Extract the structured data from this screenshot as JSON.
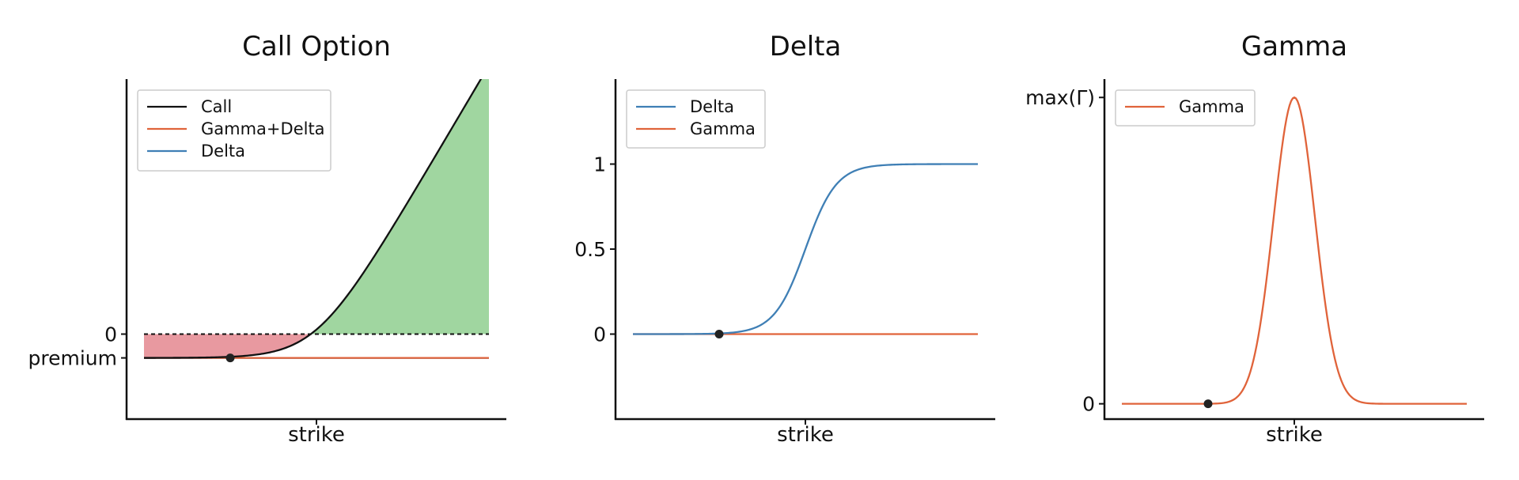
{
  "colors": {
    "call": "#111111",
    "gamma": "#e0633a",
    "delta": "#3f7fb5",
    "profit_fill": "#a0d6a0",
    "loss_fill": "#e899a0",
    "marker": "#222222"
  },
  "chart_data": [
    {
      "type": "line",
      "title": "Call Option",
      "xlabel": "strike",
      "ylabel": "",
      "xlim": [
        -1,
        1
      ],
      "ylim": [
        -0.5,
        1.5
      ],
      "yticks": [
        {
          "value": 0,
          "label": "0"
        },
        {
          "value": -0.14,
          "label": "premium"
        }
      ],
      "xticks": [
        {
          "value": 0,
          "label": ""
        }
      ],
      "grid": false,
      "legend": "top-left",
      "series": [
        {
          "name": "Call",
          "color_key": "call",
          "kind": "call_payoff",
          "strike": 0,
          "premium": 0.14
        },
        {
          "name": "Gamma+Delta",
          "color_key": "gamma",
          "kind": "flat",
          "value": -0.14
        },
        {
          "name": "Delta",
          "color_key": "delta",
          "kind": "flat",
          "value": -0.14
        }
      ],
      "fills": [
        {
          "kind": "loss_region",
          "color_key": "loss_fill"
        },
        {
          "kind": "profit_region",
          "color_key": "profit_fill"
        }
      ],
      "reference_line": {
        "value": 0,
        "style": "dashed"
      },
      "marker": {
        "x": -0.5,
        "y": -0.14
      }
    },
    {
      "type": "line",
      "title": "Delta",
      "xlabel": "strike",
      "ylabel": "",
      "xlim": [
        -1,
        1
      ],
      "ylim": [
        -0.5,
        1.5
      ],
      "yticks": [
        {
          "value": 0,
          "label": "0"
        },
        {
          "value": 0.5,
          "label": "0.5"
        },
        {
          "value": 1,
          "label": "1"
        }
      ],
      "xticks": [
        {
          "value": 0,
          "label": ""
        }
      ],
      "grid": false,
      "legend": "top-left",
      "series": [
        {
          "name": "Delta",
          "color_key": "delta",
          "kind": "sigmoid",
          "center": 0,
          "width": 0.09
        },
        {
          "name": "Gamma",
          "color_key": "gamma",
          "kind": "flat",
          "value": 0
        }
      ],
      "marker": {
        "x": -0.5,
        "y": 0
      }
    },
    {
      "type": "line",
      "title": "Gamma",
      "xlabel": "strike",
      "ylabel": "",
      "xlim": [
        -1,
        1
      ],
      "ylim": [
        -0.05,
        1.06
      ],
      "yticks": [
        {
          "value": 0,
          "label": "0"
        },
        {
          "value": 1,
          "label": "max(Γ)"
        }
      ],
      "xticks": [
        {
          "value": 0,
          "label": ""
        }
      ],
      "grid": false,
      "legend": "top-left",
      "series": [
        {
          "name": "Gamma",
          "color_key": "gamma",
          "kind": "bell",
          "center": 0,
          "sigma": 0.12
        }
      ],
      "marker": {
        "x": -0.5,
        "y": 0
      }
    }
  ]
}
